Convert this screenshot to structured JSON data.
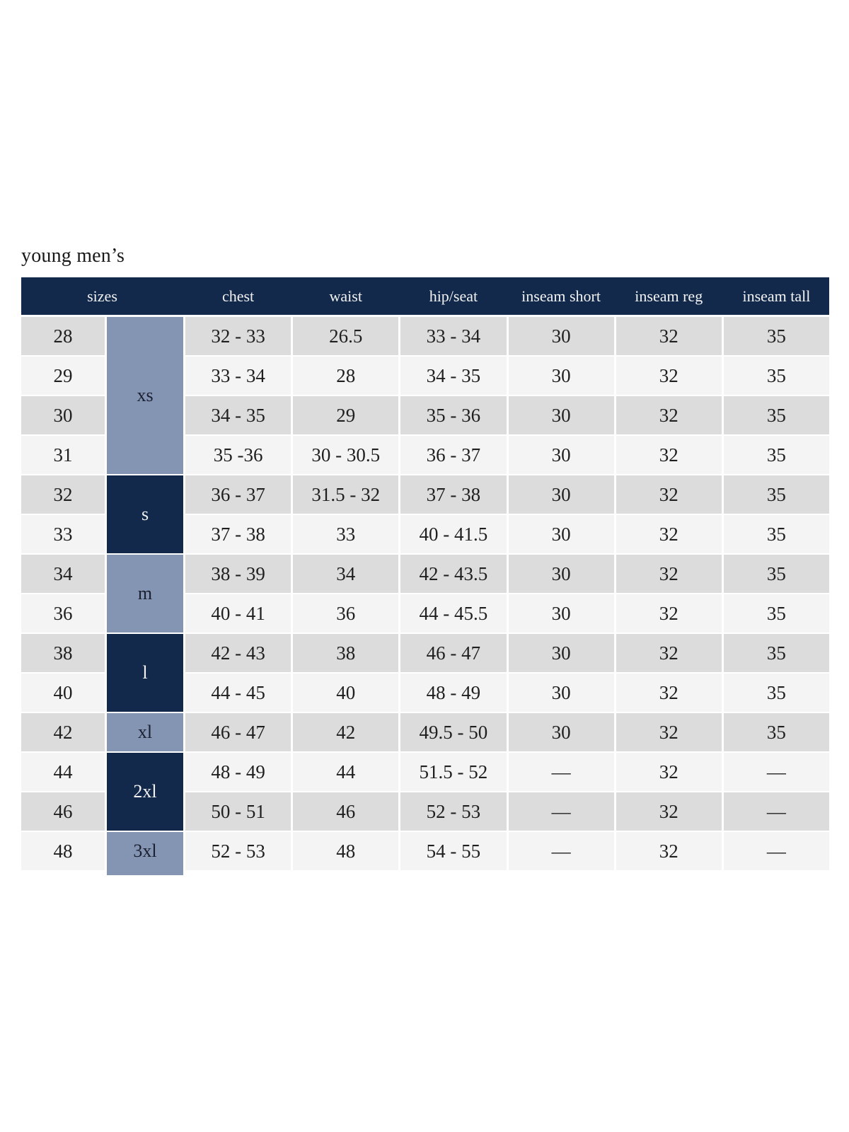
{
  "title": "young men’s",
  "colors": {
    "navy": "#12294b",
    "slate": "#8494b3",
    "row_gray": "#dcdcdc",
    "row_light": "#f4f4f4",
    "header_text": "#f2f2f2",
    "cell_text": "#1f1f1f"
  },
  "table": {
    "columns": [
      "sizes",
      "chest",
      "waist",
      "hip/seat",
      "inseam short",
      "inseam reg",
      "inseam tall"
    ],
    "size_groups": [
      {
        "label": "xs",
        "span": 4,
        "color": "slate"
      },
      {
        "label": "s",
        "span": 2,
        "color": "navy"
      },
      {
        "label": "m",
        "span": 2,
        "color": "slate"
      },
      {
        "label": "l",
        "span": 2,
        "color": "navy"
      },
      {
        "label": "xl",
        "span": 1,
        "color": "slate"
      },
      {
        "label": "2xl",
        "span": 2,
        "color": "navy"
      },
      {
        "label": "3xl",
        "span": 1,
        "color": "slate"
      }
    ],
    "rows": [
      {
        "size": "28",
        "chest": "32 - 33",
        "waist": "26.5",
        "hip_seat": "33 - 34",
        "inseam_short": "30",
        "inseam_reg": "32",
        "inseam_tall": "35"
      },
      {
        "size": "29",
        "chest": "33 - 34",
        "waist": "28",
        "hip_seat": "34 - 35",
        "inseam_short": "30",
        "inseam_reg": "32",
        "inseam_tall": "35"
      },
      {
        "size": "30",
        "chest": "34 - 35",
        "waist": "29",
        "hip_seat": "35 - 36",
        "inseam_short": "30",
        "inseam_reg": "32",
        "inseam_tall": "35"
      },
      {
        "size": "31",
        "chest": "35 -36",
        "waist": "30 - 30.5",
        "hip_seat": "36 - 37",
        "inseam_short": "30",
        "inseam_reg": "32",
        "inseam_tall": "35"
      },
      {
        "size": "32",
        "chest": "36 - 37",
        "waist": "31.5 - 32",
        "hip_seat": "37 - 38",
        "inseam_short": "30",
        "inseam_reg": "32",
        "inseam_tall": "35"
      },
      {
        "size": "33",
        "chest": "37 - 38",
        "waist": "33",
        "hip_seat": "40 - 41.5",
        "inseam_short": "30",
        "inseam_reg": "32",
        "inseam_tall": "35"
      },
      {
        "size": "34",
        "chest": "38 - 39",
        "waist": "34",
        "hip_seat": "42 - 43.5",
        "inseam_short": "30",
        "inseam_reg": "32",
        "inseam_tall": "35"
      },
      {
        "size": "36",
        "chest": "40 - 41",
        "waist": "36",
        "hip_seat": "44 - 45.5",
        "inseam_short": "30",
        "inseam_reg": "32",
        "inseam_tall": "35"
      },
      {
        "size": "38",
        "chest": "42 - 43",
        "waist": "38",
        "hip_seat": "46 - 47",
        "inseam_short": "30",
        "inseam_reg": "32",
        "inseam_tall": "35"
      },
      {
        "size": "40",
        "chest": "44 - 45",
        "waist": "40",
        "hip_seat": "48 - 49",
        "inseam_short": "30",
        "inseam_reg": "32",
        "inseam_tall": "35"
      },
      {
        "size": "42",
        "chest": "46 - 47",
        "waist": "42",
        "hip_seat": "49.5 - 50",
        "inseam_short": "30",
        "inseam_reg": "32",
        "inseam_tall": "35"
      },
      {
        "size": "44",
        "chest": "48 - 49",
        "waist": "44",
        "hip_seat": "51.5 - 52",
        "inseam_short": "—",
        "inseam_reg": "32",
        "inseam_tall": "—"
      },
      {
        "size": "46",
        "chest": "50 - 51",
        "waist": "46",
        "hip_seat": "52 - 53",
        "inseam_short": "—",
        "inseam_reg": "32",
        "inseam_tall": "—"
      },
      {
        "size": "48",
        "chest": "52 - 53",
        "waist": "48",
        "hip_seat": "54 - 55",
        "inseam_short": "—",
        "inseam_reg": "32",
        "inseam_tall": "—"
      }
    ]
  }
}
